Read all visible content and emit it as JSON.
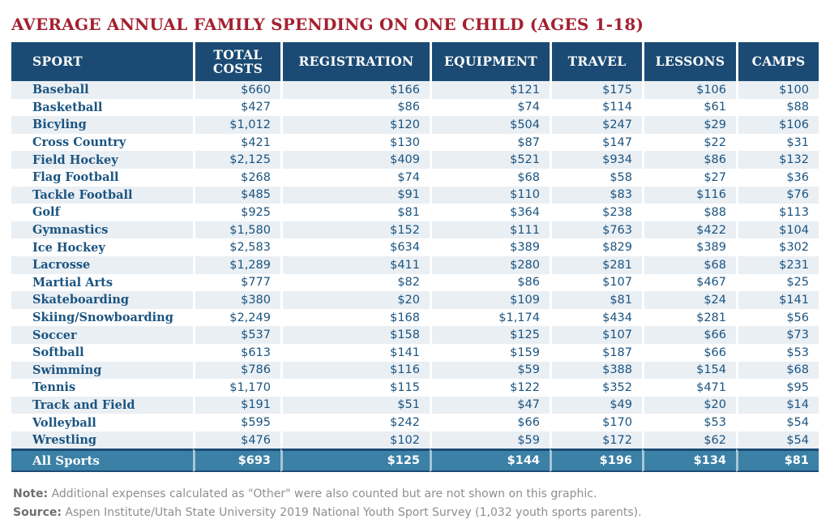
{
  "notes": {
    "note_label": "Note:",
    "note_text": "Additional expenses calculated as \"Other\" were also counted but are not shown on this graphic.",
    "source_label": "Source:",
    "source_text": "Aspen Institute/Utah State University 2019 National Youth Sport Survey (1,032 youth sports parents)."
  },
  "colors": {
    "title_red": "#A32130",
    "header_navy": "#1B4B74",
    "row_alt_blue": "#EAEFF4",
    "summary_teal": "#3B80A6",
    "cell_text_blue": "#1B5480",
    "note_gray": "#8F8F8F"
  },
  "chart_data": {
    "type": "table",
    "title": "AVERAGE ANNUAL FAMILY SPENDING ON ONE CHILD (AGES 1-18)",
    "currency": "USD",
    "columns": [
      "SPORT",
      "TOTAL COSTS",
      "REGISTRATION",
      "EQUIPMENT",
      "TRAVEL",
      "LESSONS",
      "CAMPS"
    ],
    "rows": [
      {
        "sport": "Baseball",
        "values": [
          660,
          166,
          121,
          175,
          106,
          100
        ]
      },
      {
        "sport": "Basketball",
        "values": [
          427,
          86,
          74,
          114,
          61,
          88
        ]
      },
      {
        "sport": "Bicyling",
        "values": [
          1012,
          120,
          504,
          247,
          29,
          106
        ]
      },
      {
        "sport": "Cross Country",
        "values": [
          421,
          130,
          87,
          147,
          22,
          31
        ]
      },
      {
        "sport": "Field Hockey",
        "values": [
          2125,
          409,
          521,
          934,
          86,
          132
        ]
      },
      {
        "sport": "Flag Football",
        "values": [
          268,
          74,
          68,
          58,
          27,
          36
        ]
      },
      {
        "sport": "Tackle Football",
        "values": [
          485,
          91,
          110,
          83,
          116,
          76
        ]
      },
      {
        "sport": "Golf",
        "values": [
          925,
          81,
          364,
          238,
          88,
          113
        ]
      },
      {
        "sport": "Gymnastics",
        "values": [
          1580,
          152,
          111,
          763,
          422,
          104
        ]
      },
      {
        "sport": "Ice Hockey",
        "values": [
          2583,
          634,
          389,
          829,
          389,
          302
        ]
      },
      {
        "sport": "Lacrosse",
        "values": [
          1289,
          411,
          280,
          281,
          68,
          231
        ]
      },
      {
        "sport": "Martial Arts",
        "values": [
          777,
          82,
          86,
          107,
          467,
          25
        ]
      },
      {
        "sport": "Skateboarding",
        "values": [
          380,
          20,
          109,
          81,
          24,
          141
        ]
      },
      {
        "sport": "Skiing/Snowboarding",
        "values": [
          2249,
          168,
          1174,
          434,
          281,
          56
        ]
      },
      {
        "sport": "Soccer",
        "values": [
          537,
          158,
          125,
          107,
          66,
          73
        ]
      },
      {
        "sport": "Softball",
        "values": [
          613,
          141,
          159,
          187,
          66,
          53
        ]
      },
      {
        "sport": "Swimming",
        "values": [
          786,
          116,
          59,
          388,
          154,
          68
        ]
      },
      {
        "sport": "Tennis",
        "values": [
          1170,
          115,
          122,
          352,
          471,
          95
        ]
      },
      {
        "sport": "Track and Field",
        "values": [
          191,
          51,
          47,
          49,
          20,
          14
        ]
      },
      {
        "sport": "Volleyball",
        "values": [
          595,
          242,
          66,
          170,
          53,
          54
        ]
      },
      {
        "sport": "Wrestling",
        "values": [
          476,
          102,
          59,
          172,
          62,
          54
        ]
      }
    ],
    "summary_row": {
      "sport": "All Sports",
      "values": [
        693,
        125,
        144,
        196,
        134,
        81
      ]
    }
  }
}
